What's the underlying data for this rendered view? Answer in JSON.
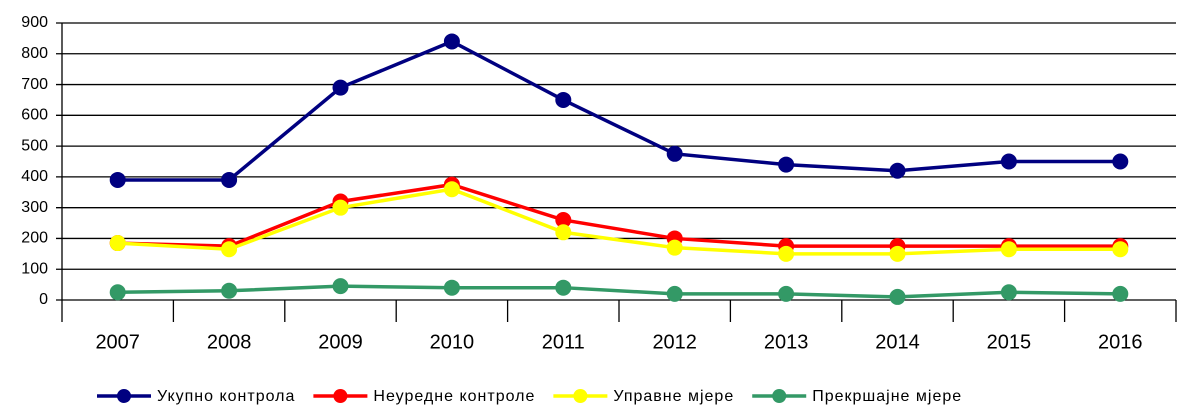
{
  "chart_data": {
    "type": "line",
    "categories": [
      "2007",
      "2008",
      "2009",
      "2010",
      "2011",
      "2012",
      "2013",
      "2014",
      "2015",
      "2016"
    ],
    "series": [
      {
        "name": "Укупно контрола",
        "color": "#000080",
        "values": [
          390,
          390,
          690,
          840,
          650,
          475,
          440,
          420,
          450,
          450
        ]
      },
      {
        "name": "Неуредне контроле",
        "color": "#ff0000",
        "values": [
          185,
          175,
          320,
          375,
          260,
          200,
          175,
          175,
          175,
          175
        ]
      },
      {
        "name": "Управне мјере",
        "color": "#ffff00",
        "values": [
          185,
          165,
          300,
          360,
          220,
          170,
          150,
          150,
          165,
          165
        ]
      },
      {
        "name": "Прекршајне мјере",
        "color": "#339966",
        "values": [
          25,
          30,
          45,
          40,
          40,
          20,
          20,
          10,
          25,
          20
        ]
      }
    ],
    "ylim": [
      0,
      900
    ],
    "yticks": [
      0,
      100,
      200,
      300,
      400,
      500,
      600,
      700,
      800,
      900
    ],
    "grid": true
  }
}
